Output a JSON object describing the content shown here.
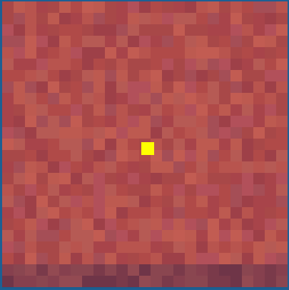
{
  "colors": {
    "frame_border": "#1d5f93",
    "marker": "#ffff00",
    "base_palette": [
      "#b04a48",
      "#b8544e",
      "#a8444a",
      "#b65a54",
      "#a84848",
      "#bd5a50",
      "#9e4048",
      "#b2505a",
      "#c25c52",
      "#a54e56"
    ]
  },
  "marker": {
    "icon": "yellow-square-marker"
  }
}
